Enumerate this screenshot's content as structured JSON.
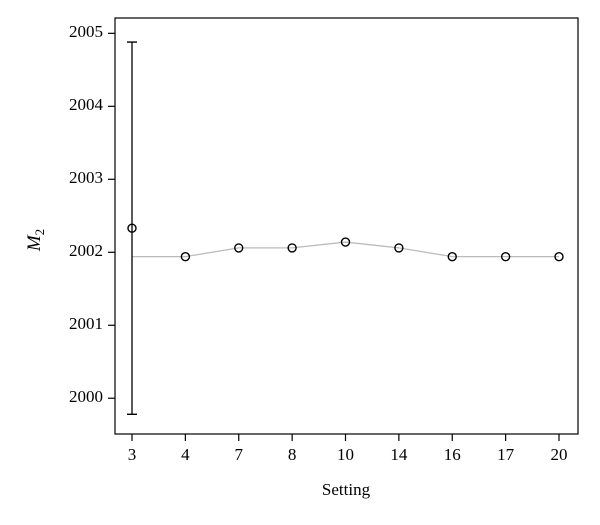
{
  "chart_data": {
    "type": "line",
    "xlabel": "Setting",
    "ylabel": "M",
    "ylabel_sub": "2",
    "categories": [
      "3",
      "4",
      "7",
      "8",
      "10",
      "14",
      "16",
      "17",
      "20"
    ],
    "series": [
      {
        "color": "#000000",
        "marker": "circle",
        "line": false,
        "values": [
          2002.33,
          2001.94,
          2002.06,
          2002.06,
          2002.14,
          2002.06,
          2001.94,
          2001.94,
          2001.94
        ],
        "errors": [
          2.55,
          null,
          null,
          null,
          null,
          null,
          null,
          null,
          null
        ]
      },
      {
        "color": "#bbbbbb",
        "marker": null,
        "line": true,
        "values": [
          2001.94,
          2001.94,
          2002.06,
          2002.06,
          2002.14,
          2002.06,
          2001.94,
          2001.94,
          2001.94
        ]
      }
    ],
    "ylim": [
      1999.51,
      2005.21
    ],
    "yticks": [
      2000,
      2001,
      2002,
      2003,
      2004,
      2005
    ],
    "grid": false
  }
}
